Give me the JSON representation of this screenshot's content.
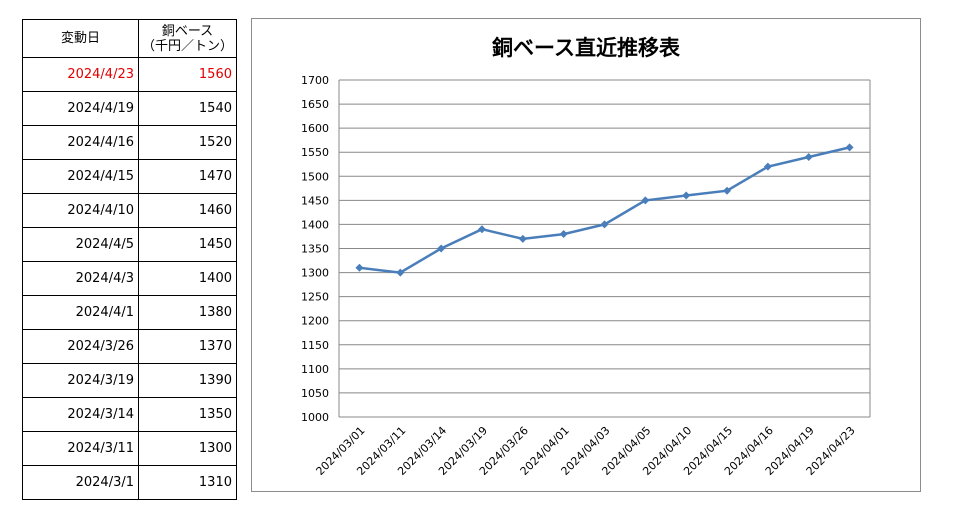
{
  "table": {
    "header_date": "変動日",
    "header_price_line1": "銅ベース",
    "header_price_line2": "（千円／トン）",
    "rows": [
      {
        "date": "2024/4/23",
        "price": "1560"
      },
      {
        "date": "2024/4/19",
        "price": "1540"
      },
      {
        "date": "2024/4/16",
        "price": "1520"
      },
      {
        "date": "2024/4/15",
        "price": "1470"
      },
      {
        "date": "2024/4/10",
        "price": "1460"
      },
      {
        "date": "2024/4/5",
        "price": "1450"
      },
      {
        "date": "2024/4/3",
        "price": "1400"
      },
      {
        "date": "2024/4/1",
        "price": "1380"
      },
      {
        "date": "2024/3/26",
        "price": "1370"
      },
      {
        "date": "2024/3/19",
        "price": "1390"
      },
      {
        "date": "2024/3/14",
        "price": "1350"
      },
      {
        "date": "2024/3/11",
        "price": "1300"
      },
      {
        "date": "2024/3/1",
        "price": "1310"
      }
    ],
    "highlight_color": "#e00000"
  },
  "chart_data": {
    "type": "line",
    "title": "銅ベース直近推移表",
    "categories": [
      "2024/03/01",
      "2024/03/11",
      "2024/03/14",
      "2024/03/19",
      "2024/03/26",
      "2024/04/01",
      "2024/04/03",
      "2024/04/05",
      "2024/04/10",
      "2024/04/15",
      "2024/04/16",
      "2024/04/19",
      "2024/04/23"
    ],
    "series": [
      {
        "values": [
          1310,
          1300,
          1350,
          1390,
          1370,
          1380,
          1400,
          1450,
          1460,
          1470,
          1520,
          1540,
          1560
        ],
        "color": "#4a7ebb"
      }
    ],
    "ylim": [
      1000,
      1700
    ],
    "ytick_step": 50,
    "grid": true,
    "legend": "none"
  }
}
